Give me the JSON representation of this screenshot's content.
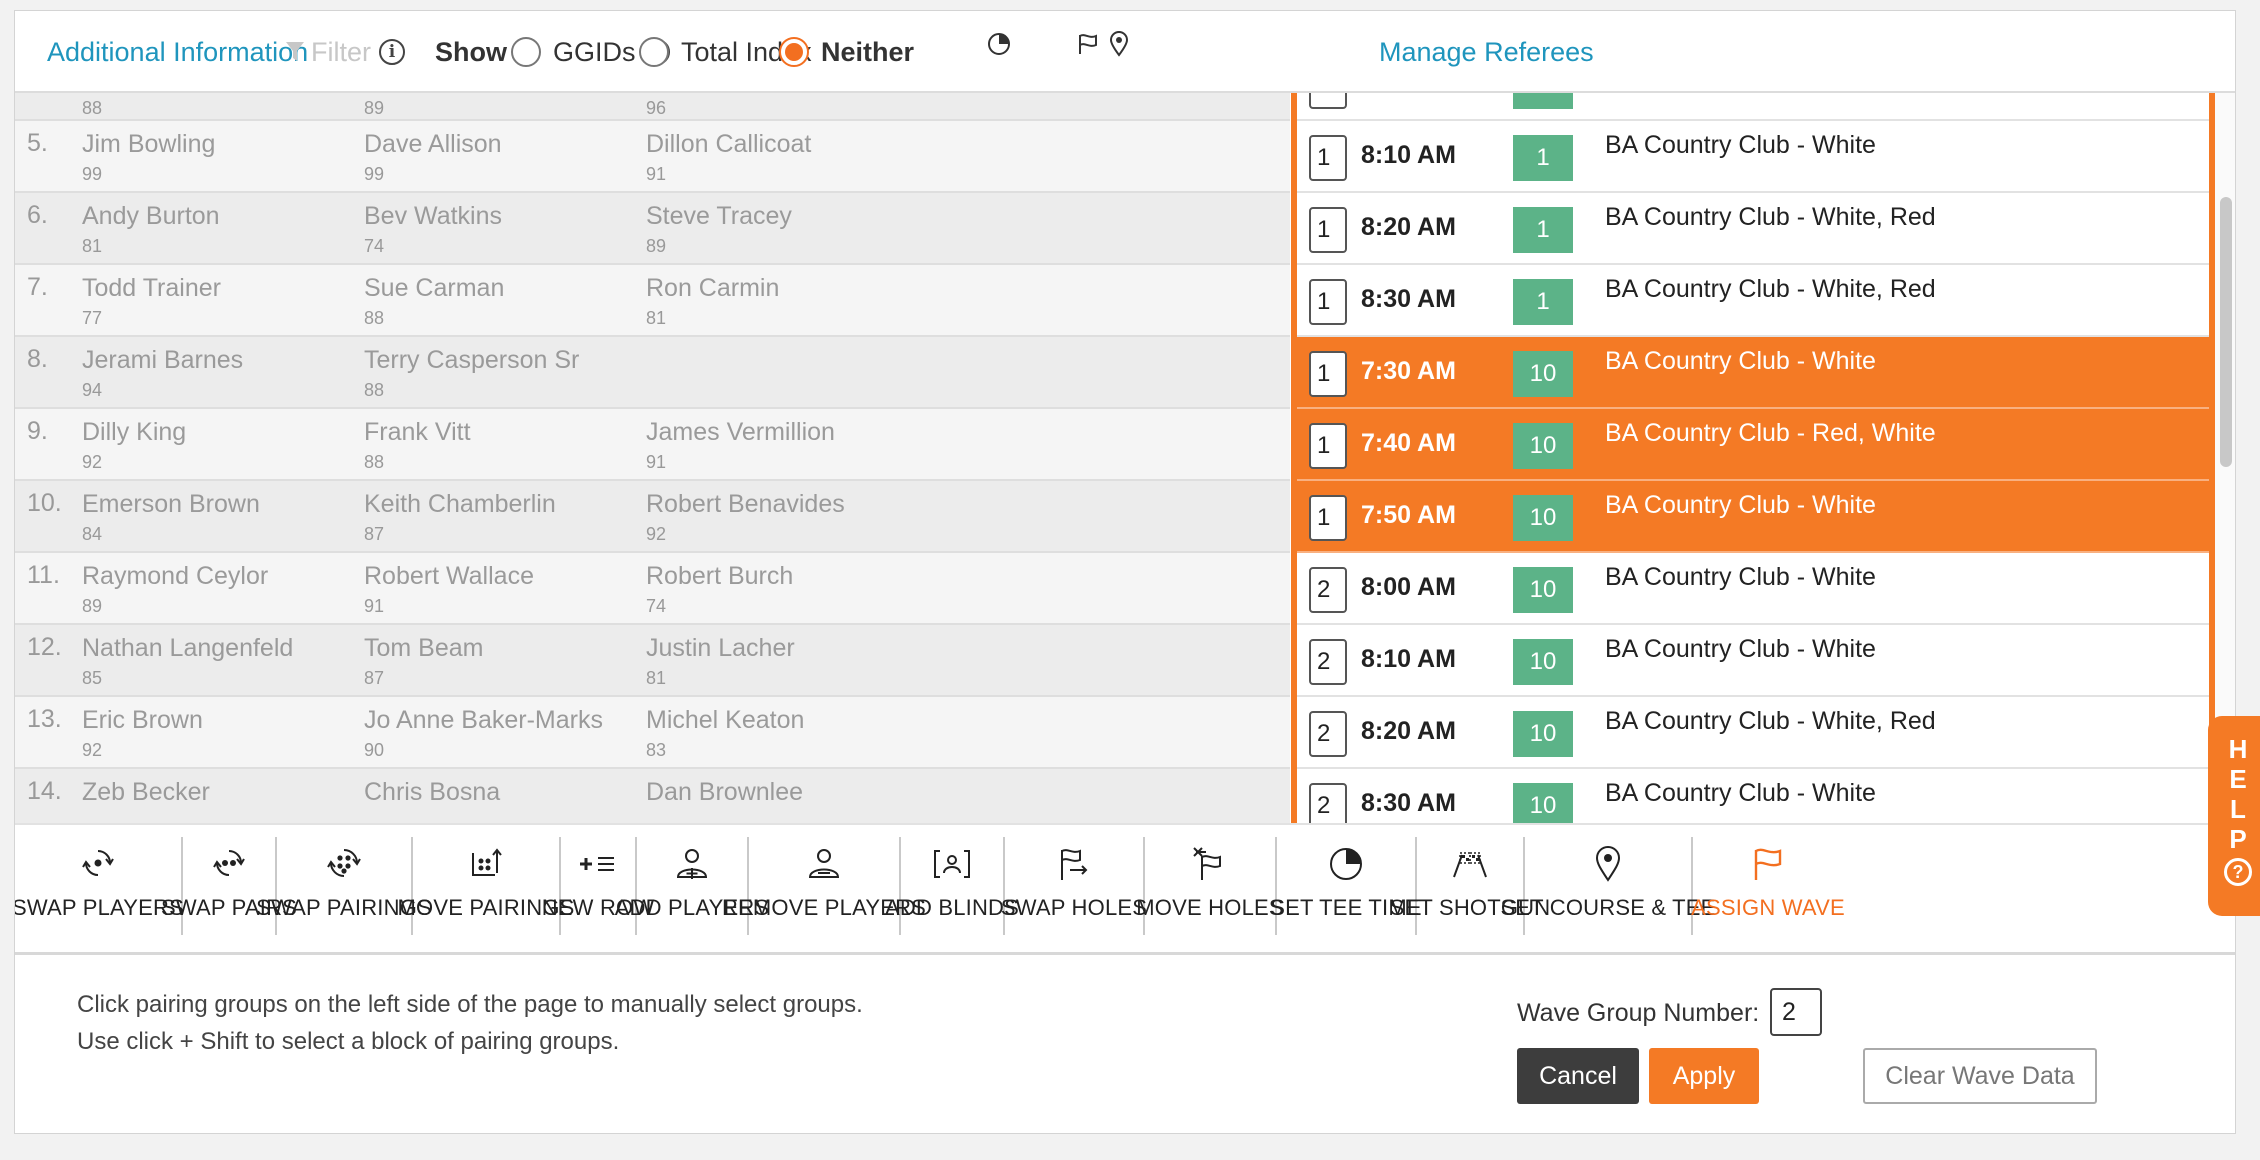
{
  "topbar": {
    "additional_info": "Additional Information",
    "filter": "Filter",
    "show": "Show",
    "options": [
      {
        "label": "GGIDs",
        "selected": false
      },
      {
        "label": "Total Index",
        "selected": false
      },
      {
        "label": "Neither",
        "selected": true
      }
    ],
    "manage_referees": "Manage Referees"
  },
  "top_partial": {
    "p1_index": "88",
    "p2_index": "89",
    "p3_index": "96"
  },
  "rows": [
    {
      "num": "5.",
      "players": [
        {
          "name": "Jim Bowling",
          "index": "99"
        },
        {
          "name": "Dave Allison",
          "index": "99"
        },
        {
          "name": "Dillon Callicoat",
          "index": "91"
        }
      ],
      "wave": "1",
      "time": "8:10 AM",
      "hole": "1",
      "course": "BA Country Club - White",
      "selected": false
    },
    {
      "num": "6.",
      "players": [
        {
          "name": "Andy Burton",
          "index": "81"
        },
        {
          "name": "Bev Watkins",
          "index": "74"
        },
        {
          "name": "Steve Tracey",
          "index": "89"
        }
      ],
      "wave": "1",
      "time": "8:20 AM",
      "hole": "1",
      "course": "BA Country Club - White, Red",
      "selected": false
    },
    {
      "num": "7.",
      "players": [
        {
          "name": "Todd Trainer",
          "index": "77"
        },
        {
          "name": "Sue Carman",
          "index": "88"
        },
        {
          "name": "Ron Carmin",
          "index": "81"
        }
      ],
      "wave": "1",
      "time": "8:30 AM",
      "hole": "1",
      "course": "BA Country Club - White, Red",
      "selected": false
    },
    {
      "num": "8.",
      "players": [
        {
          "name": "Jerami Barnes",
          "index": "94"
        },
        {
          "name": "Terry Casperson Sr",
          "index": "88"
        },
        {
          "name": "",
          "index": ""
        }
      ],
      "wave": "1",
      "time": "7:30 AM",
      "hole": "10",
      "course": "BA Country Club - White",
      "selected": true
    },
    {
      "num": "9.",
      "players": [
        {
          "name": "Dilly King",
          "index": "92"
        },
        {
          "name": "Frank Vitt",
          "index": "88"
        },
        {
          "name": "James Vermillion",
          "index": "91"
        }
      ],
      "wave": "1",
      "time": "7:40 AM",
      "hole": "10",
      "course": "BA Country Club - Red, White",
      "selected": true
    },
    {
      "num": "10.",
      "players": [
        {
          "name": "Emerson Brown",
          "index": "84"
        },
        {
          "name": "Keith Chamberlin",
          "index": "87"
        },
        {
          "name": "Robert Benavides",
          "index": "92"
        }
      ],
      "wave": "1",
      "time": "7:50 AM",
      "hole": "10",
      "course": "BA Country Club - White",
      "selected": true
    },
    {
      "num": "11.",
      "players": [
        {
          "name": "Raymond Ceylor",
          "index": "89"
        },
        {
          "name": "Robert Wallace",
          "index": "91"
        },
        {
          "name": "Robert Burch",
          "index": "74"
        }
      ],
      "wave": "2",
      "time": "8:00 AM",
      "hole": "10",
      "course": "BA Country Club - White",
      "selected": false
    },
    {
      "num": "12.",
      "players": [
        {
          "name": "Nathan Langenfeld",
          "index": "85"
        },
        {
          "name": "Tom Beam",
          "index": "87"
        },
        {
          "name": "Justin Lacher",
          "index": "81"
        }
      ],
      "wave": "2",
      "time": "8:10 AM",
      "hole": "10",
      "course": "BA Country Club - White",
      "selected": false
    },
    {
      "num": "13.",
      "players": [
        {
          "name": "Eric Brown",
          "index": "92"
        },
        {
          "name": "Jo Anne Baker-Marks",
          "index": "90"
        },
        {
          "name": "Michel Keaton",
          "index": "83"
        }
      ],
      "wave": "2",
      "time": "8:20 AM",
      "hole": "10",
      "course": "BA Country Club - White, Red",
      "selected": false
    },
    {
      "num": "14.",
      "players": [
        {
          "name": "Zeb Becker",
          "index": ""
        },
        {
          "name": "Chris Bosna",
          "index": ""
        },
        {
          "name": "Dan Brownlee",
          "index": ""
        }
      ],
      "wave": "2",
      "time": "8:30 AM",
      "hole": "10",
      "course": "BA Country Club - White",
      "selected": false
    }
  ],
  "toolbar": [
    {
      "label": "SWAP PLAYERS",
      "icon": "swap-players-icon"
    },
    {
      "label": "SWAP PAIRS",
      "icon": "swap-pairs-icon"
    },
    {
      "label": "SWAP PAIRINGS",
      "icon": "swap-pairings-icon"
    },
    {
      "label": "MOVE PAIRINGS",
      "icon": "move-pairings-icon"
    },
    {
      "label": "NEW ROW",
      "icon": "new-row-icon"
    },
    {
      "label": "ADD PLAYERS",
      "icon": "add-player-icon"
    },
    {
      "label": "REMOVE PLAYERS",
      "icon": "remove-player-icon"
    },
    {
      "label": "ADD BLINDS",
      "icon": "add-blinds-icon"
    },
    {
      "label": "SWAP HOLES",
      "icon": "swap-holes-icon"
    },
    {
      "label": "MOVE HOLES",
      "icon": "move-holes-icon"
    },
    {
      "label": "SET TEE TIME",
      "icon": "clock-icon"
    },
    {
      "label": "SET SHOTGUN",
      "icon": "checkered-flags-icon"
    },
    {
      "label": "SET COURSE & TEE",
      "icon": "location-pin-icon"
    },
    {
      "label": "ASSIGN WAVE",
      "icon": "flag-icon"
    }
  ],
  "footer": {
    "help_line1": "Click pairing groups on the left side of the page to manually select groups.",
    "help_line2": "Use click + Shift to select a block of pairing groups.",
    "wave_label": "Wave Group Number:",
    "wave_value": "2",
    "cancel": "Cancel",
    "apply": "Apply",
    "clear": "Clear Wave Data"
  },
  "help_tab": {
    "letters": [
      "H",
      "E",
      "L",
      "P"
    ],
    "q": "?"
  },
  "colors": {
    "accent": "#f47a25",
    "link": "#1f95bd",
    "hole_green": "#5cb388"
  }
}
